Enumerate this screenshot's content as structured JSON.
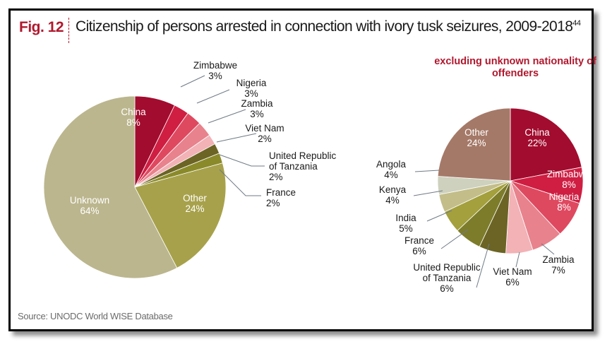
{
  "figure": {
    "label": "Fig. 12",
    "title": "Citizenship of persons arrested in connection with ivory tusk seizures, 2009-2018",
    "footnote": "44",
    "source": "Source: UNODC World WISE Database"
  },
  "chart_data": [
    {
      "type": "pie",
      "title": "",
      "slices": [
        {
          "name": "China",
          "value": 8,
          "label": "8%",
          "color": "#a20c2e"
        },
        {
          "name": "Zimbabwe",
          "value": 3,
          "label": "3%",
          "color": "#cf1e42"
        },
        {
          "name": "Nigeria",
          "value": 3,
          "label": "3%",
          "color": "#df4960"
        },
        {
          "name": "Zambia",
          "value": 3,
          "label": "3%",
          "color": "#e8828c"
        },
        {
          "name": "Viet Nam",
          "value": 2,
          "label": "2%",
          "color": "#f2b2b6"
        },
        {
          "name": "United Republic of Tanzania",
          "value": 2,
          "label": "2%",
          "color": "#6b6424"
        },
        {
          "name": "France",
          "value": 2,
          "label": "2%",
          "color": "#8a8a2a"
        },
        {
          "name": "Other",
          "value": 24,
          "label": "24%",
          "color": "#a7a14b"
        },
        {
          "name": "Unknown",
          "value": 64,
          "label": "64%",
          "color": "#bbb68e"
        }
      ]
    },
    {
      "type": "pie",
      "title": "excluding unknown nationality of offenders",
      "slices": [
        {
          "name": "China",
          "value": 22,
          "label": "22%",
          "color": "#a20c2e"
        },
        {
          "name": "Zimbabwe",
          "value": 8,
          "label": "8%",
          "color": "#cf1e42"
        },
        {
          "name": "Nigeria",
          "value": 8,
          "label": "8%",
          "color": "#df4960"
        },
        {
          "name": "Zambia",
          "value": 7,
          "label": "7%",
          "color": "#e8828c"
        },
        {
          "name": "Viet Nam",
          "value": 6,
          "label": "6%",
          "color": "#f2b2b6"
        },
        {
          "name": "United Republic of Tanzania",
          "value": 6,
          "label": "6%",
          "color": "#6b6424"
        },
        {
          "name": "France",
          "value": 6,
          "label": "6%",
          "color": "#7d7c2a"
        },
        {
          "name": "India",
          "value": 5,
          "label": "5%",
          "color": "#a3a03d"
        },
        {
          "name": "Kenya",
          "value": 4,
          "label": "4%",
          "color": "#c3bd89"
        },
        {
          "name": "Angola",
          "value": 4,
          "label": "4%",
          "color": "#cdd1bd"
        },
        {
          "name": "Other",
          "value": 24,
          "label": "24%",
          "color": "#a57968"
        }
      ]
    }
  ]
}
